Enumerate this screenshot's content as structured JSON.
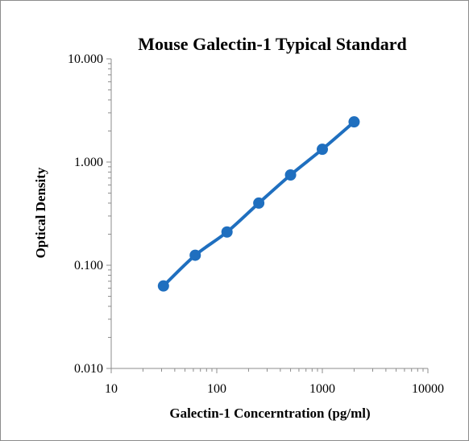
{
  "chart_data": {
    "type": "line",
    "title": "Mouse Galectin-1 Typical Standard",
    "xlabel": "Galectin-1 Concerntration (pg/ml)",
    "ylabel": "Optical Density",
    "x_scale": "log",
    "y_scale": "log",
    "xlim": [
      10,
      10000
    ],
    "ylim": [
      0.01,
      10
    ],
    "x_ticks": [
      "10",
      "100",
      "1000",
      "10000"
    ],
    "y_ticks": [
      "0.010",
      "0.100",
      "1.000",
      "10.000"
    ],
    "grid": false,
    "legend": "none",
    "series": [
      {
        "x": [
          31.25,
          62.5,
          125,
          250,
          500,
          1000,
          2000
        ],
        "y": [
          0.063,
          0.125,
          0.21,
          0.4,
          0.75,
          1.33,
          2.45
        ],
        "color": "#1f6fbf"
      }
    ]
  }
}
